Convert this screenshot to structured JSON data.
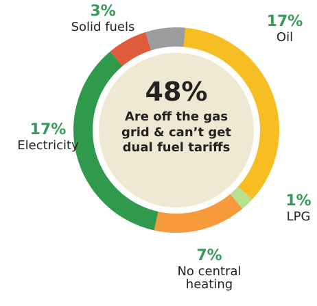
{
  "chart_data": {
    "type": "donut",
    "categories": [
      "Oil",
      "LPG",
      "No central heating",
      "Electricity",
      "Solid fuels",
      null
    ],
    "values": [
      17,
      1,
      7,
      17,
      3,
      3
    ],
    "value_labels": [
      "17%",
      "1%",
      "7%",
      "17%",
      "3%",
      null
    ],
    "colors": [
      "#f6be22",
      "#b8e08e",
      "#f69a3c",
      "#2f9a4c",
      "#e05a3c",
      "#9c9c9e"
    ],
    "center_text": "48%",
    "center_caption": "Are off the gas grid & can’t get dual fuel tariffs"
  }
}
